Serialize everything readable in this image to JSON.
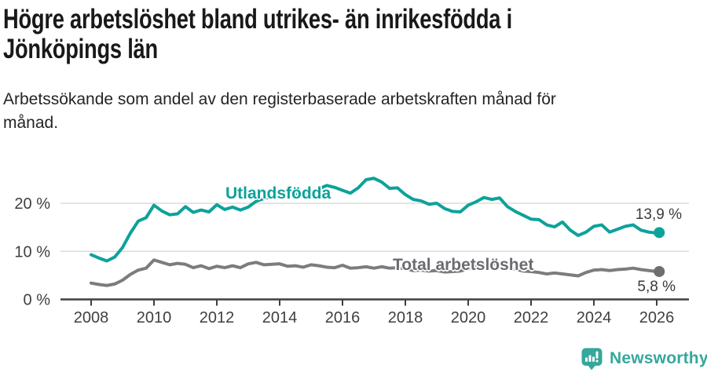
{
  "header": {
    "title": "Högre arbetslöshet bland utrikes- än inrikesfödda i Jönköpings län",
    "title_lines": [
      "Högre arbetslöshet bland utrikes- än inrikesfödda i",
      "Jönköpings län"
    ],
    "subtitle": "Arbetssökande som andel av den registerbaserade arbetskraften månad för månad.",
    "subtitle_lines": [
      "Arbetssökande som andel av den registerbaserade arbetskraften månad för",
      "månad."
    ]
  },
  "chart_data": {
    "type": "line",
    "title": "Högre arbetslöshet bland utrikes- än inrikesfödda i Jönköpings län",
    "subtitle": "Arbetssökande som andel av den registerbaserade arbetskraften månad för månad.",
    "unit": "%",
    "grid": "horizontal",
    "legend_position": "inline-labels",
    "x_range": [
      2007.0,
      2027.0
    ],
    "y_range": [
      0,
      26
    ],
    "x_ticks": [
      "2008",
      "2010",
      "2012",
      "2014",
      "2016",
      "2018",
      "2020",
      "2022",
      "2024",
      "2026"
    ],
    "y_ticks": [
      {
        "value": 0,
        "label": "0 %"
      },
      {
        "value": 10,
        "label": "10 %"
      },
      {
        "value": 20,
        "label": "20 %"
      }
    ],
    "x": [
      2008.0,
      2008.25,
      2008.5,
      2008.75,
      2009.0,
      2009.25,
      2009.5,
      2009.75,
      2010.0,
      2010.25,
      2010.5,
      2010.75,
      2011.0,
      2011.25,
      2011.5,
      2011.75,
      2012.0,
      2012.25,
      2012.5,
      2012.75,
      2013.0,
      2013.25,
      2013.5,
      2013.75,
      2014.0,
      2014.25,
      2014.5,
      2014.75,
      2015.0,
      2015.25,
      2015.5,
      2015.75,
      2016.0,
      2016.25,
      2016.5,
      2016.75,
      2017.0,
      2017.25,
      2017.5,
      2017.75,
      2018.0,
      2018.25,
      2018.5,
      2018.75,
      2019.0,
      2019.25,
      2019.5,
      2019.75,
      2020.0,
      2020.25,
      2020.5,
      2020.75,
      2021.0,
      2021.25,
      2021.5,
      2021.75,
      2022.0,
      2022.25,
      2022.5,
      2022.75,
      2023.0,
      2023.25,
      2023.5,
      2023.75,
      2024.0,
      2024.25,
      2024.5,
      2024.75,
      2025.0,
      2025.25,
      2025.5,
      2025.75,
      2026.0,
      2026.08
    ],
    "series": [
      {
        "name": "Utlandsfödda",
        "color": "#0DA29A",
        "dot_color": "#0DA29A",
        "end_label": "13,9 %",
        "end_value": 13.9,
        "values": [
          9.3,
          8.6,
          8.0,
          8.8,
          10.8,
          13.8,
          16.3,
          17.0,
          19.6,
          18.4,
          17.6,
          17.8,
          19.3,
          18.1,
          18.6,
          18.2,
          19.7,
          18.7,
          19.2,
          18.6,
          19.2,
          20.4,
          21.0,
          21.4,
          21.2,
          21.6,
          21.9,
          21.7,
          22.3,
          23.0,
          23.7,
          23.3,
          22.7,
          22.1,
          23.2,
          24.9,
          25.2,
          24.4,
          23.1,
          23.2,
          21.8,
          20.8,
          20.5,
          19.8,
          20.0,
          18.9,
          18.3,
          18.2,
          19.6,
          20.3,
          21.2,
          20.8,
          21.1,
          19.3,
          18.3,
          17.5,
          16.7,
          16.6,
          15.5,
          15.1,
          16.1,
          14.4,
          13.3,
          14.0,
          15.2,
          15.5,
          14.0,
          14.6,
          15.2,
          15.5,
          14.4,
          14.0,
          13.8,
          13.9
        ]
      },
      {
        "name": "Total arbetslöshet",
        "color": "#7C7C80",
        "dot_color": "#6E6E72",
        "end_label": "5,8 %",
        "end_value": 5.8,
        "values": [
          3.4,
          3.1,
          2.9,
          3.2,
          4.0,
          5.2,
          6.1,
          6.5,
          8.2,
          7.7,
          7.2,
          7.5,
          7.3,
          6.6,
          7.0,
          6.4,
          6.9,
          6.6,
          7.0,
          6.6,
          7.4,
          7.7,
          7.2,
          7.3,
          7.4,
          6.9,
          7.0,
          6.7,
          7.2,
          7.0,
          6.7,
          6.6,
          7.1,
          6.5,
          6.6,
          6.8,
          6.5,
          6.8,
          6.5,
          6.6,
          6.4,
          6.0,
          6.1,
          5.9,
          6.0,
          5.7,
          5.8,
          5.9,
          6.3,
          7.2,
          7.5,
          7.3,
          7.4,
          6.8,
          6.3,
          5.9,
          5.8,
          5.6,
          5.3,
          5.5,
          5.3,
          5.1,
          4.9,
          5.6,
          6.1,
          6.2,
          6.0,
          6.2,
          6.3,
          6.5,
          6.2,
          6.0,
          5.8,
          5.8
        ]
      }
    ]
  },
  "footer": {
    "brand": "Newsworthy",
    "logo_icon": "bar-chart-speech-bubble-icon",
    "brand_color": "#35A79C"
  },
  "colors": {
    "accent": "#0DA29A",
    "series_gray": "#7C7C80",
    "grid": "#DBDBDB",
    "axis": "#3F3F3F",
    "text": "#1A1A1A"
  }
}
